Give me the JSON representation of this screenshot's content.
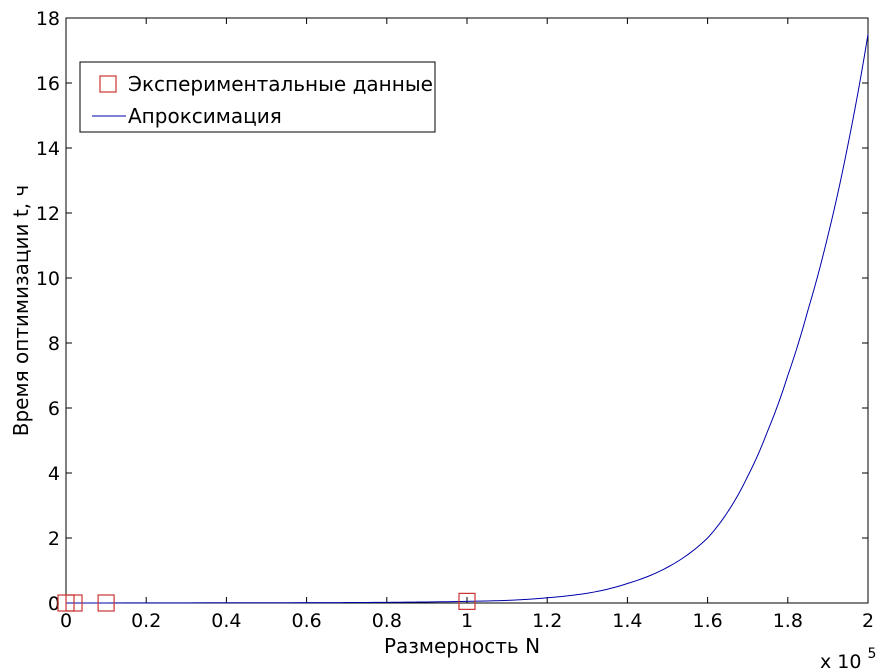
{
  "chart_data": {
    "type": "line",
    "xlabel": "Размерность N",
    "ylabel": "Время оптимизации t, ч",
    "x_multiplier_base": "x 10",
    "x_multiplier_exp": "5",
    "xlim": [
      0,
      2
    ],
    "ylim": [
      0,
      18
    ],
    "x_ticks": [
      "0",
      "0.2",
      "0.4",
      "0.6",
      "0.8",
      "1",
      "1.2",
      "1.4",
      "1.6",
      "1.8",
      "2"
    ],
    "y_ticks": [
      "0",
      "2",
      "4",
      "6",
      "8",
      "10",
      "12",
      "14",
      "16",
      "18"
    ],
    "grid": false,
    "legend_position": "top-left",
    "series": [
      {
        "name": "Экспериментальные данные",
        "kind": "markers",
        "marker": "square",
        "color": "#cc3333",
        "points": [
          [
            0.0,
            0.0
          ],
          [
            0.02,
            0.0
          ],
          [
            0.1,
            0.0
          ],
          [
            1.0,
            0.05
          ]
        ]
      },
      {
        "name": "Апроксимация",
        "kind": "line",
        "color": "#0000aa",
        "points": [
          [
            0.0,
            0.0
          ],
          [
            0.6,
            0.01
          ],
          [
            0.8,
            0.02
          ],
          [
            1.0,
            0.05
          ],
          [
            1.1,
            0.08
          ],
          [
            1.2,
            0.16
          ],
          [
            1.3,
            0.3
          ],
          [
            1.4,
            0.6
          ],
          [
            1.5,
            1.1
          ],
          [
            1.6,
            2.0
          ],
          [
            1.65,
            2.8
          ],
          [
            1.7,
            3.9
          ],
          [
            1.75,
            5.3
          ],
          [
            1.8,
            7.0
          ],
          [
            1.85,
            9.0
          ],
          [
            1.9,
            11.3
          ],
          [
            1.95,
            14.1
          ],
          [
            2.0,
            17.5
          ]
        ]
      }
    ]
  }
}
